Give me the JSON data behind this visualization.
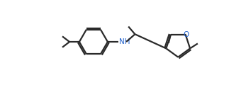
{
  "bg_color": "#ffffff",
  "line_color": "#2a2a2a",
  "lw": 1.6,
  "o_color": "#2060cc",
  "nh_color": "#2060cc"
}
